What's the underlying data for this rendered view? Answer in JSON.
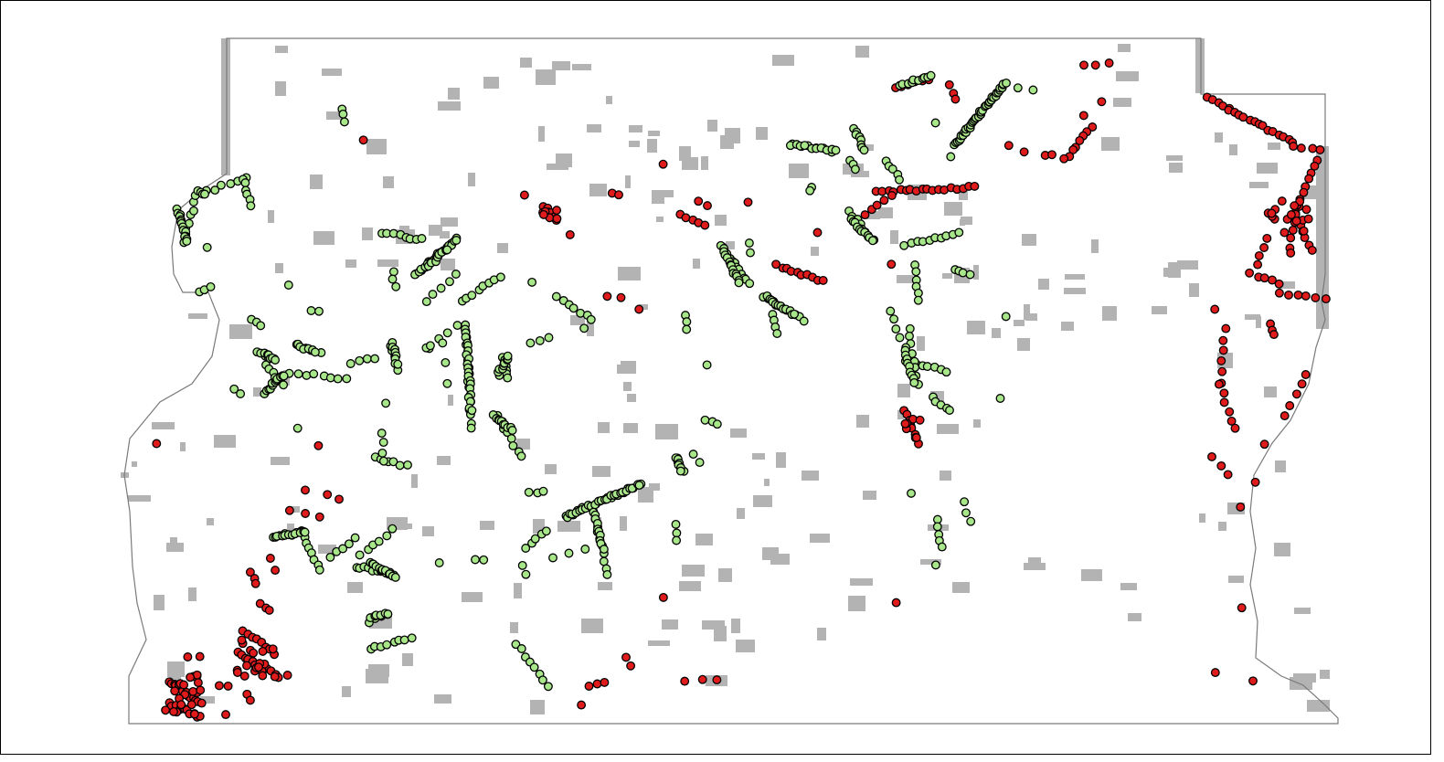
{
  "map": {
    "colors": {
      "background": "#ffffff",
      "frame": "#000000",
      "boundary": "#7a7a7a",
      "land_cover": "#b3b3b3",
      "point_outline": "#000000",
      "point_green": "#a8e68a",
      "point_red": "#e01b1b"
    },
    "legend": null,
    "layers": [
      {
        "name": "county-boundary",
        "kind": "polygon"
      },
      {
        "name": "land-cover-patches",
        "kind": "raster",
        "color_key": "land_cover"
      },
      {
        "name": "sites-green",
        "kind": "points",
        "color_key": "point_green"
      },
      {
        "name": "sites-red",
        "kind": "points",
        "color_key": "point_red"
      }
    ]
  }
}
